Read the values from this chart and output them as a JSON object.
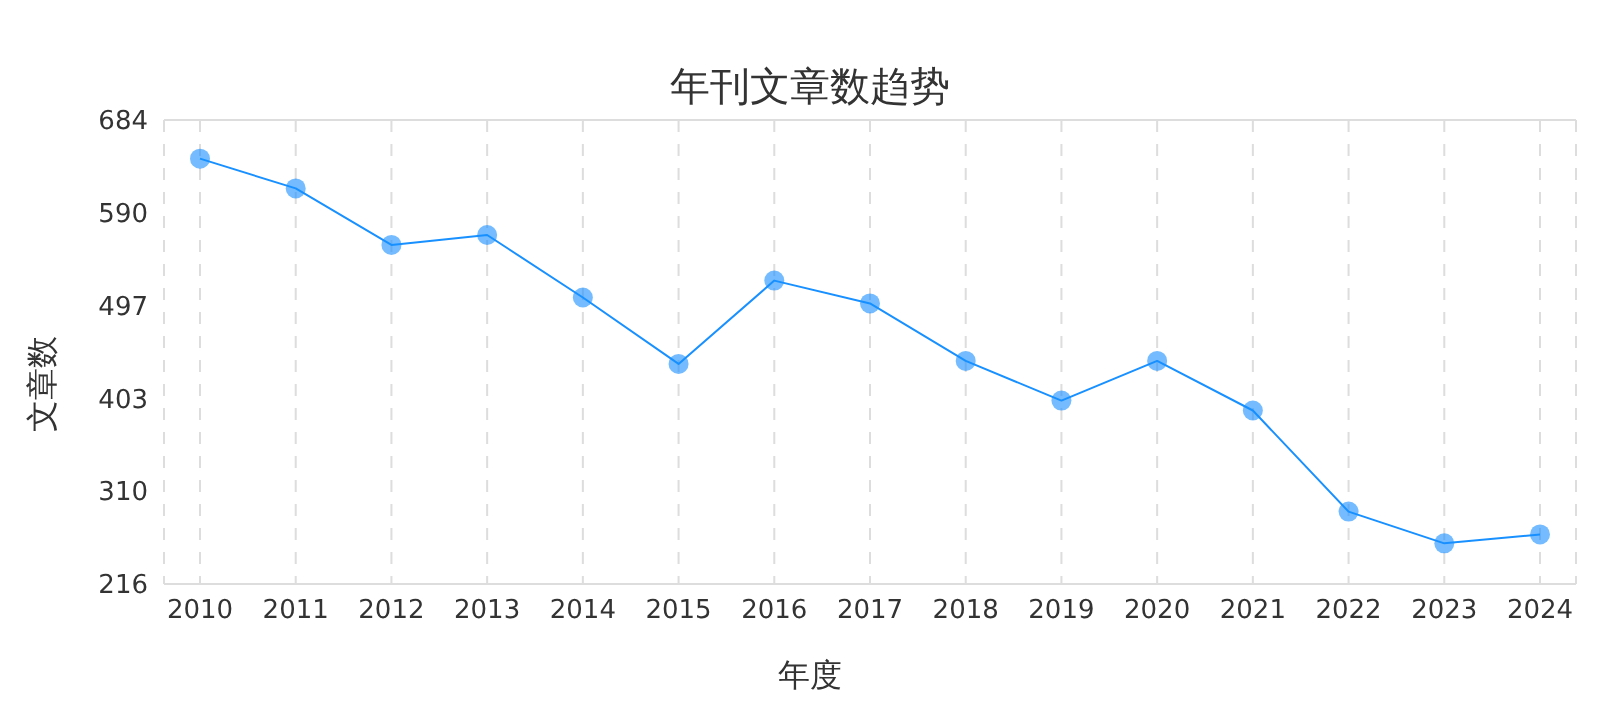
{
  "chart_data": {
    "type": "line",
    "title": "年刊文章数趋势",
    "xlabel": "年度",
    "ylabel": "文章数",
    "categories": [
      "2010",
      "2011",
      "2012",
      "2013",
      "2014",
      "2015",
      "2016",
      "2017",
      "2018",
      "2019",
      "2020",
      "2021",
      "2022",
      "2023",
      "2024"
    ],
    "series": [
      {
        "color": "#1890ff",
        "values": [
          645,
          615,
          558,
          568,
          505,
          438,
          522,
          499,
          441,
          401,
          441,
          391,
          289,
          257,
          266
        ]
      }
    ],
    "ylim": [
      216,
      684
    ],
    "yticks": [
      216,
      310,
      403,
      497,
      590,
      684
    ],
    "grid": true,
    "marker": "circle",
    "line_style": "solid"
  }
}
